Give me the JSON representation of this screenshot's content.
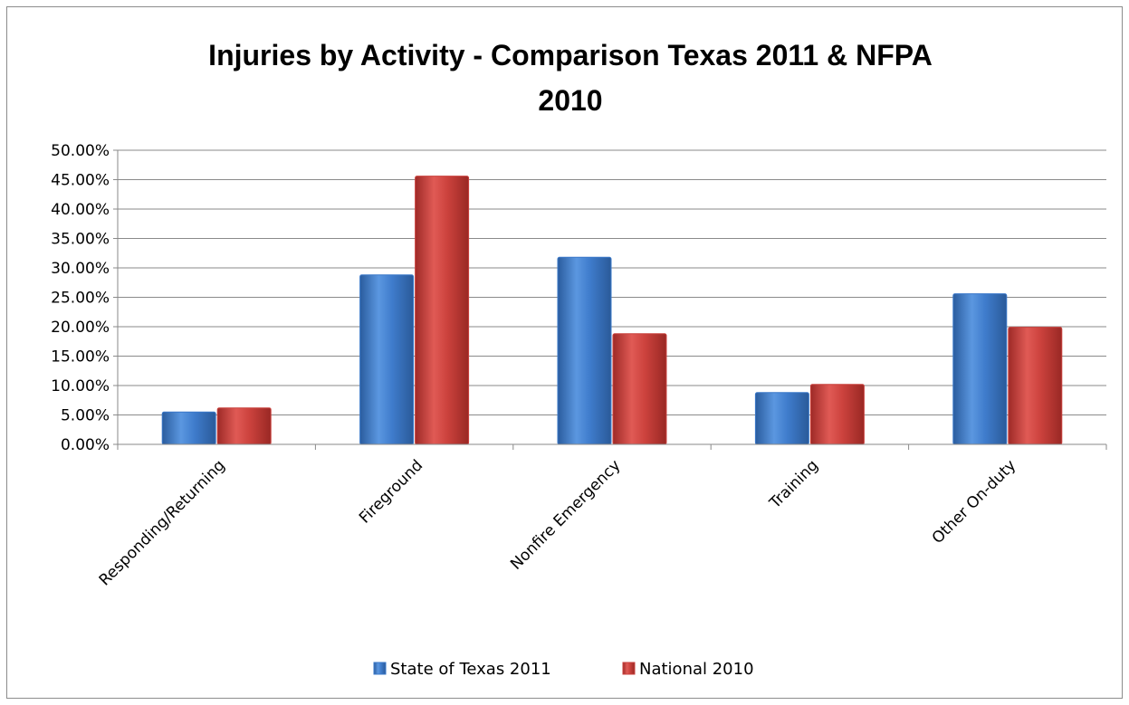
{
  "chart_data": {
    "type": "bar",
    "title_lines": [
      "Injuries by Activity - Comparison Texas 2011 & NFPA",
      "2010"
    ],
    "categories": [
      "Responding/Returning",
      "Fireground",
      "Nonfire Emergency",
      "Training",
      "Other On-duty"
    ],
    "series": [
      {
        "name": "State of Texas 2011",
        "color": "#3a78c9",
        "values": [
          5.5,
          28.8,
          31.8,
          8.8,
          25.6
        ]
      },
      {
        "name": "National 2010",
        "color": "#c9403c",
        "values": [
          6.2,
          45.6,
          18.8,
          10.2,
          19.9
        ]
      }
    ],
    "ylim": [
      0,
      50
    ],
    "yticks": [
      "0.00%",
      "5.00%",
      "10.00%",
      "15.00%",
      "20.00%",
      "25.00%",
      "30.00%",
      "35.00%",
      "40.00%",
      "45.00%",
      "50.00%"
    ],
    "ytick_values": [
      0,
      5,
      10,
      15,
      20,
      25,
      30,
      35,
      40,
      45,
      50
    ],
    "grid": true,
    "legend_position": "bottom"
  }
}
